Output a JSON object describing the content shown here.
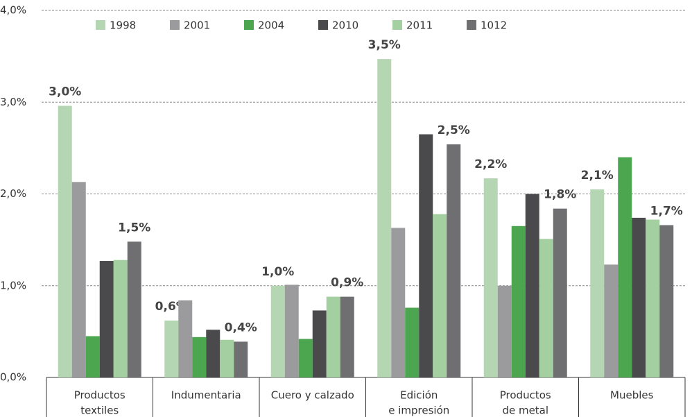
{
  "chart_data": {
    "type": "bar",
    "categories": [
      [
        "Productos",
        "textiles"
      ],
      [
        "Indumentaria"
      ],
      [
        "Cuero y calzado"
      ],
      [
        "Edición",
        "e impresión"
      ],
      [
        "Productos",
        "de metal"
      ],
      [
        "Muebles"
      ]
    ],
    "series": [
      {
        "name": "1998",
        "color": "#b5d6b2",
        "values": [
          2.96,
          0.62,
          1.0,
          3.47,
          2.17,
          2.05
        ],
        "value_labels": [
          "3,0%",
          "0,6%",
          "1,0%",
          "3,5%",
          "2,2%",
          "2,1%"
        ]
      },
      {
        "name": "2001",
        "color": "#9b9b9d",
        "values": [
          2.13,
          0.84,
          1.01,
          1.63,
          1.0,
          1.23
        ]
      },
      {
        "name": "2004",
        "color": "#4ca64f",
        "values": [
          0.45,
          0.44,
          0.42,
          0.76,
          1.65,
          2.4
        ]
      },
      {
        "name": "2010",
        "color": "#4a4a4c",
        "values": [
          1.27,
          0.52,
          0.73,
          2.65,
          2.0,
          1.74
        ]
      },
      {
        "name": "2011",
        "color": "#a4cfa0",
        "values": [
          1.28,
          0.41,
          0.88,
          1.78,
          1.51,
          1.72
        ]
      },
      {
        "name": "1012",
        "color": "#6f6f72",
        "values": [
          1.48,
          0.39,
          0.88,
          2.54,
          1.84,
          1.66
        ],
        "value_labels": [
          "1,5%",
          "0,4%",
          "0,9%",
          "2,5%",
          "1,8%",
          "1,7%"
        ]
      }
    ],
    "ylim": [
      0,
      4
    ],
    "yticks": [
      {
        "value": 0,
        "label": "0,0%"
      },
      {
        "value": 1,
        "label": "1,0%"
      },
      {
        "value": 2,
        "label": "2,0%"
      },
      {
        "value": 3,
        "label": "3,0%"
      },
      {
        "value": 4,
        "label": "4,0%"
      }
    ],
    "grid": true,
    "legend": "top"
  }
}
